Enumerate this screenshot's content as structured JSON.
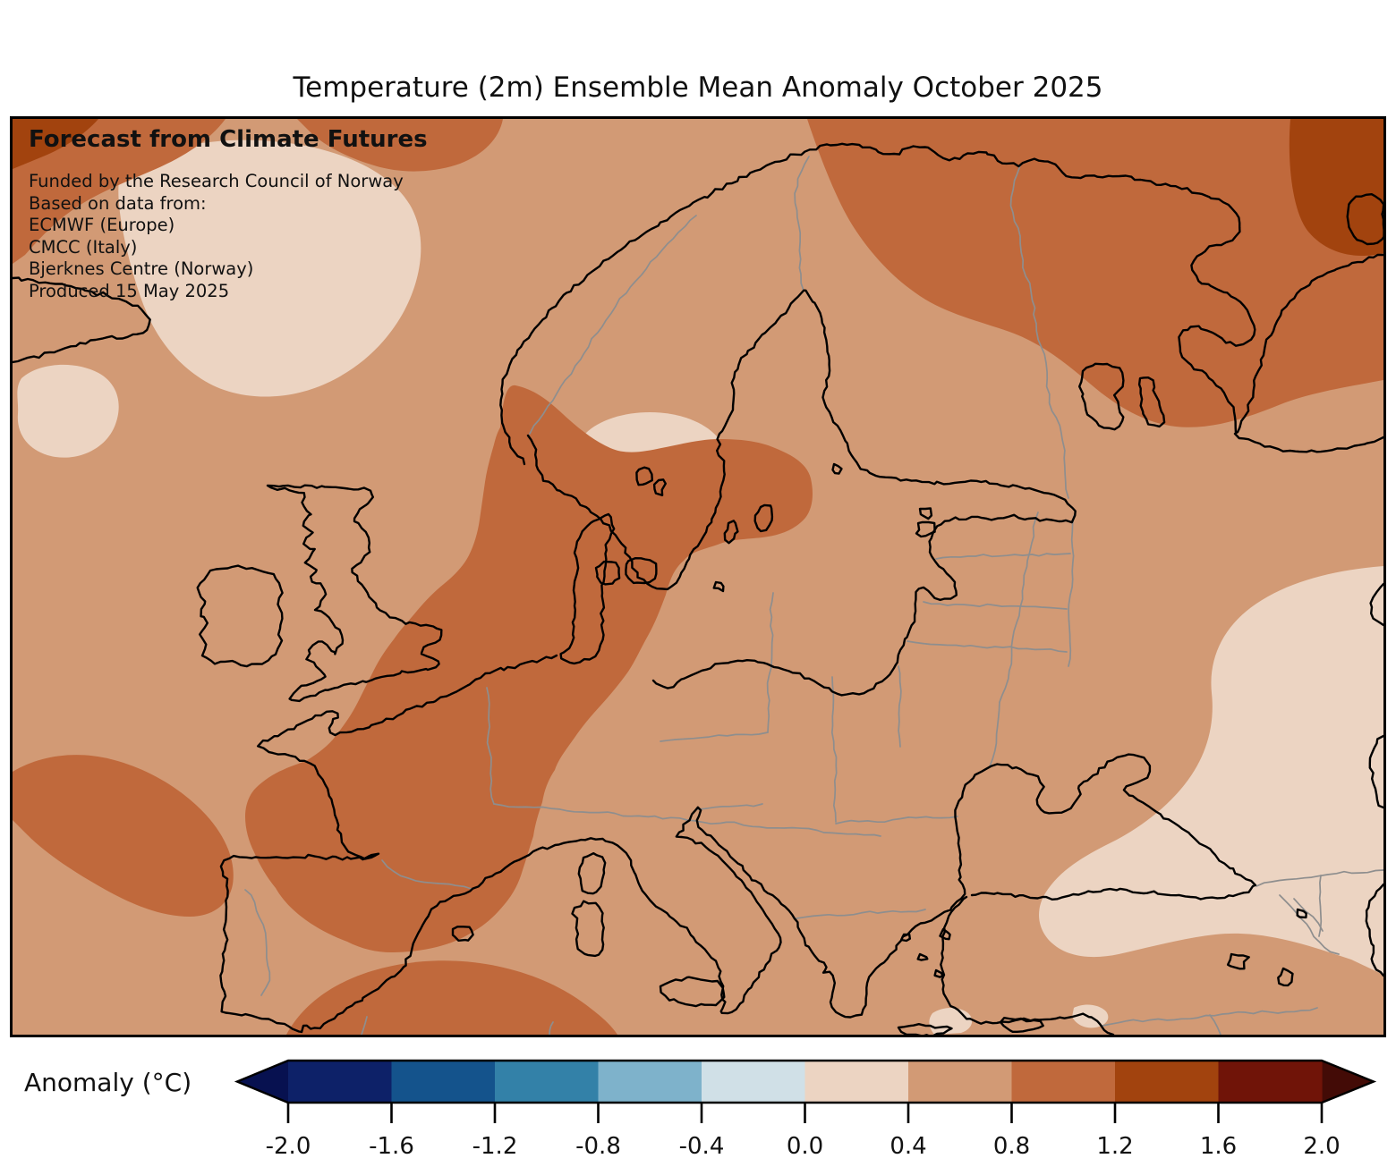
{
  "title": "Temperature (2m) Ensemble Mean Anomaly October 2025",
  "overlay": {
    "heading": "Forecast from Climate Futures",
    "lines": [
      "Funded by the Research Council of Norway",
      "Based on data from:",
      "ECMWF (Europe)",
      "CMCC (Italy)",
      "Bjerknes Centre (Norway)",
      "Produced 15 May 2025"
    ]
  },
  "colorbar": {
    "label": "Anomaly (°C)",
    "ticks": [
      "-2.0",
      "-1.6",
      "-1.2",
      "-0.8",
      "-0.4",
      "0.0",
      "0.4",
      "0.8",
      "1.2",
      "1.6",
      "2.0"
    ],
    "segment_colors": [
      "#0d2168",
      "#14538c",
      "#3381a8",
      "#7eb2cb",
      "#d0e0e7",
      "#ecd4c2",
      "#d29a75",
      "#c0693c",
      "#a2430e",
      "#701408"
    ],
    "under_color": "#071150",
    "over_color": "#430b06"
  },
  "map": {
    "coast_color": "#000000",
    "country_border_color": "#8e8e8e",
    "fill_levels": {
      "anom_0.0_0.4": "#ecd4c2",
      "anom_0.4_0.8": "#d29a75",
      "anom_0.8_1.2": "#c0693c",
      "anom_1.2_1.6": "#a2430e"
    }
  }
}
